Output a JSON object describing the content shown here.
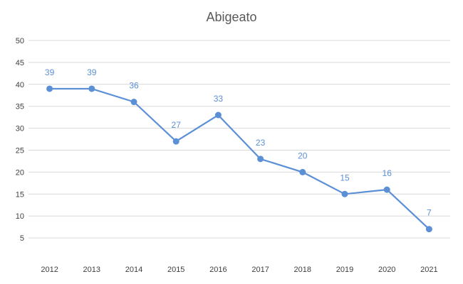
{
  "chart_data": {
    "type": "line",
    "title": "Abigeato",
    "xlabel": "",
    "ylabel": "",
    "categories": [
      "2012",
      "2013",
      "2014",
      "2015",
      "2016",
      "2017",
      "2018",
      "2019",
      "2020",
      "2021"
    ],
    "series": [
      {
        "values": [
          39,
          39,
          36,
          27,
          33,
          23,
          20,
          15,
          16,
          7
        ],
        "color": "#5b8fd6"
      }
    ],
    "ylim": [
      0,
      50
    ],
    "yticks": [
      5,
      10,
      15,
      20,
      25,
      30,
      35,
      40,
      45,
      50
    ],
    "grid": true,
    "legend": "none",
    "data_labels": true
  }
}
